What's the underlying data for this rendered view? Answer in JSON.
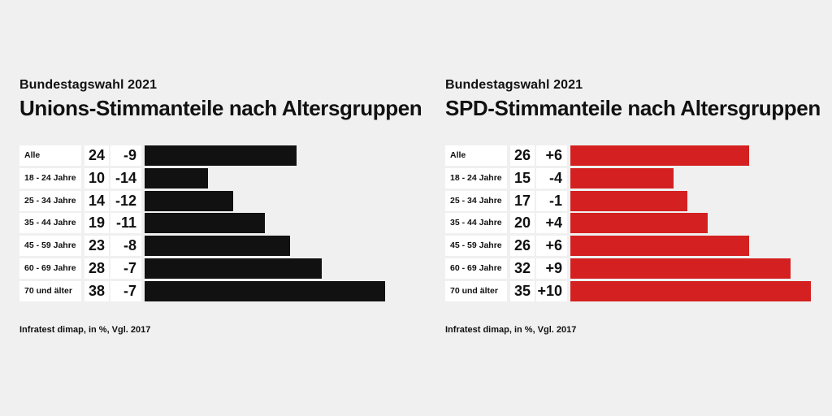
{
  "chart_data": [
    {
      "type": "bar",
      "orientation": "horizontal",
      "kicker": "Bundestagswahl 2021",
      "title": "Unions-Stimmanteile nach Altersgruppen",
      "categories": [
        "Alle",
        "18 - 24 Jahre",
        "25 - 34 Jahre",
        "35 - 44 Jahre",
        "45 - 59 Jahre",
        "60 - 69 Jahre",
        "70 und älter"
      ],
      "values": [
        24,
        10,
        14,
        19,
        23,
        28,
        38
      ],
      "changes": [
        "-9",
        "-14",
        "-12",
        "-11",
        "-8",
        "-7",
        "-7"
      ],
      "xlim": [
        0,
        38
      ],
      "color": "#111111",
      "source": "Infratest dimap, in %, Vgl. 2017"
    },
    {
      "type": "bar",
      "orientation": "horizontal",
      "kicker": "Bundestagswahl 2021",
      "title": "SPD-Stimmanteile nach Altersgruppen",
      "categories": [
        "Alle",
        "18 - 24 Jahre",
        "25 - 34 Jahre",
        "35 - 44 Jahre",
        "45 - 59 Jahre",
        "60 - 69 Jahre",
        "70 und älter"
      ],
      "values": [
        26,
        15,
        17,
        20,
        26,
        32,
        35
      ],
      "changes": [
        "+6",
        "-4",
        "-1",
        "+4",
        "+6",
        "+9",
        "+10"
      ],
      "xlim": [
        0,
        35
      ],
      "color": "#d42020",
      "source": "Infratest dimap, in %, Vgl. 2017"
    }
  ]
}
